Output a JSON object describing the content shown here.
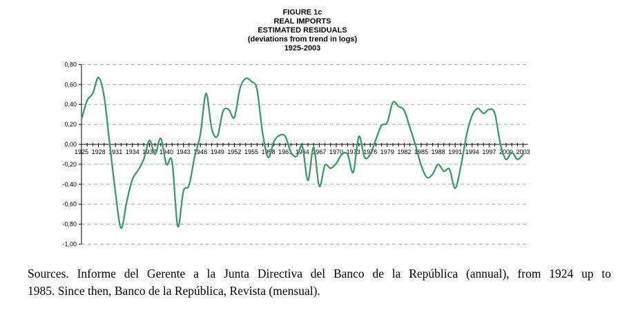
{
  "chart": {
    "title_lines": [
      "FIGURE 1c",
      "REAL IMPORTS",
      "ESTIMATED RESIDUALS",
      "(deviations from trend in logs)",
      "1925-2003"
    ]
  },
  "chart_data": {
    "type": "line",
    "title": "FIGURE 1c — REAL IMPORTS — ESTIMATED RESIDUALS (deviations from trend in logs) 1925-2003",
    "xlabel": "",
    "ylabel": "",
    "xlim": [
      1925,
      2003
    ],
    "ylim": [
      -1.0,
      0.8
    ],
    "grid": "horizontal-dashed",
    "legend": "none",
    "x_tick_step_labeled": 3,
    "x_tick_labels": [
      "1925",
      "1928",
      "1931",
      "1934",
      "1937",
      "1940",
      "1943",
      "1946",
      "1949",
      "1952",
      "1955",
      "1958",
      "1961",
      "1964",
      "1967",
      "1970",
      "1973",
      "1976",
      "1979",
      "1982",
      "1985",
      "1988",
      "1991",
      "1994",
      "1997",
      "2000",
      "2003"
    ],
    "y_ticks": [
      0.8,
      0.6,
      0.4,
      0.2,
      0.0,
      -0.2,
      -0.4,
      -0.6,
      -0.8,
      -1.0
    ],
    "y_tick_labels": [
      "0,80",
      "0,60",
      "0,40",
      "0,20",
      "0,00",
      "-0,20",
      "-0,40",
      "-0,60",
      "-0,80",
      "-1,00"
    ],
    "years": [
      1925,
      1926,
      1927,
      1928,
      1929,
      1930,
      1931,
      1932,
      1933,
      1934,
      1935,
      1936,
      1937,
      1938,
      1939,
      1940,
      1941,
      1942,
      1943,
      1944,
      1945,
      1946,
      1947,
      1948,
      1949,
      1950,
      1951,
      1952,
      1953,
      1954,
      1955,
      1956,
      1957,
      1958,
      1959,
      1960,
      1961,
      1962,
      1963,
      1964,
      1965,
      1966,
      1967,
      1968,
      1969,
      1970,
      1971,
      1972,
      1973,
      1974,
      1975,
      1976,
      1977,
      1978,
      1979,
      1980,
      1981,
      1982,
      1983,
      1984,
      1985,
      1986,
      1987,
      1988,
      1989,
      1990,
      1991,
      1992,
      1993,
      1994,
      1995,
      1996,
      1997,
      1998,
      1999,
      2000,
      2001,
      2002,
      2003
    ],
    "values": [
      0.25,
      0.44,
      0.51,
      0.67,
      0.48,
      0.0,
      -0.48,
      -0.84,
      -0.57,
      -0.35,
      -0.26,
      -0.15,
      0.04,
      -0.1,
      0.06,
      -0.2,
      -0.17,
      -0.82,
      -0.47,
      -0.41,
      -0.12,
      0.1,
      0.51,
      0.16,
      0.08,
      0.33,
      0.35,
      0.27,
      0.56,
      0.66,
      0.63,
      0.55,
      0.11,
      -0.13,
      0.03,
      0.09,
      0.08,
      -0.08,
      -0.12,
      -0.02,
      -0.36,
      -0.03,
      -0.42,
      -0.21,
      -0.24,
      -0.19,
      -0.1,
      -0.1,
      -0.28,
      0.08,
      -0.13,
      -0.1,
      0.05,
      0.19,
      0.22,
      0.42,
      0.38,
      0.34,
      0.17,
      -0.01,
      -0.21,
      -0.33,
      -0.3,
      -0.2,
      -0.27,
      -0.25,
      -0.44,
      -0.22,
      0.09,
      0.29,
      0.36,
      0.31,
      0.35,
      0.31,
      0.0,
      -0.15,
      -0.08,
      -0.15,
      -0.1
    ],
    "line_color": "#3A9B68",
    "grid_color": "#ACACAC",
    "axis_color": "#000000"
  },
  "sources": {
    "text": "Sources. Informe del Gerente a la Junta Directiva del Banco de la República (annual), from 1924 up to 1985. Since then, Banco de la República, Revista (mensual).",
    "lines": [
      "Sources. Informe del Gerente a la Junta Directiva del Banco de la República (annual), from 1924 up to",
      "1985. Since then, Banco de la República, Revista (mensual)."
    ]
  }
}
